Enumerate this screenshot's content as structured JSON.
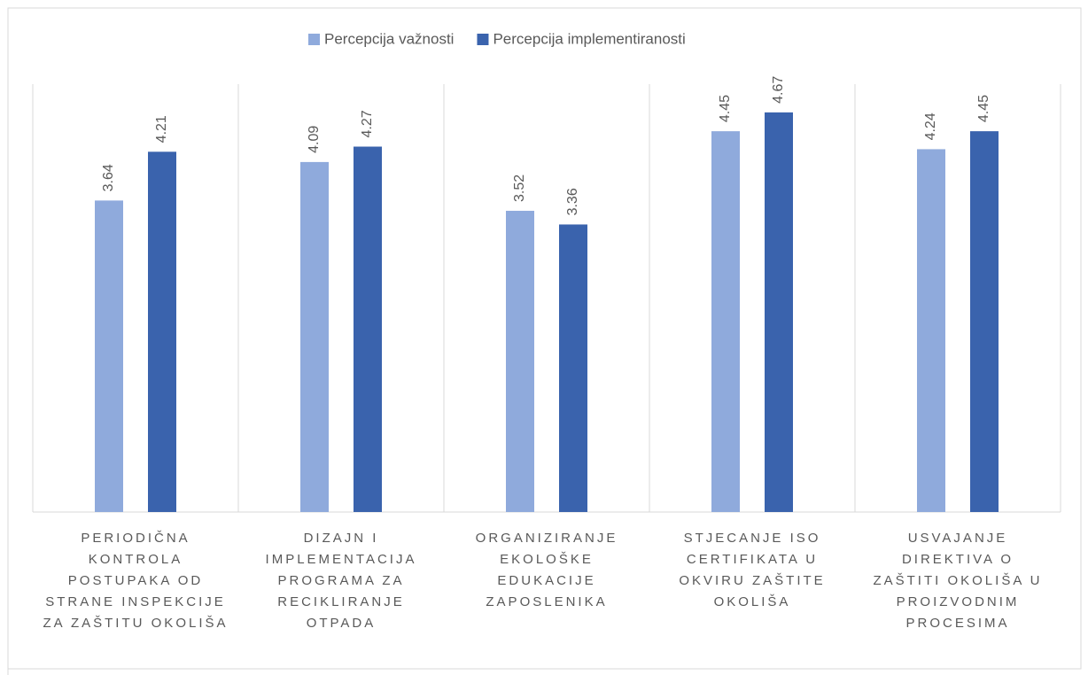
{
  "chart_data": {
    "type": "bar",
    "categories": [
      "PERIODIČNA KONTROLA POSTUPAKA OD STRANE INSPEKCIJE ZA ZAŠTITU OKOLIŠA",
      "DIZAJN I IMPLEMENTACIJA PROGRAMA ZA RECIKLIRANJE OTPADA",
      "ORGANIZIRANJE EKOLOŠKE EDUKACIJE ZAPOSLENIKA",
      "STJECANJE ISO CERTIFIKATA U OKVIRU ZAŠTITE OKOLIŠA",
      "USVAJANJE DIREKTIVA O ZAŠTITI OKOLIŠA U PROIZVODNIM PROCESIMA"
    ],
    "series": [
      {
        "name": "Percepcija važnosti",
        "color": "#8faadc",
        "values": [
          3.64,
          4.09,
          3.52,
          4.45,
          4.24
        ]
      },
      {
        "name": "Percepcija implementiranosti",
        "color": "#3a63ad",
        "values": [
          4.21,
          4.27,
          3.36,
          4.67,
          4.45
        ]
      }
    ],
    "ylim": [
      0,
      5
    ],
    "legend": "top"
  }
}
